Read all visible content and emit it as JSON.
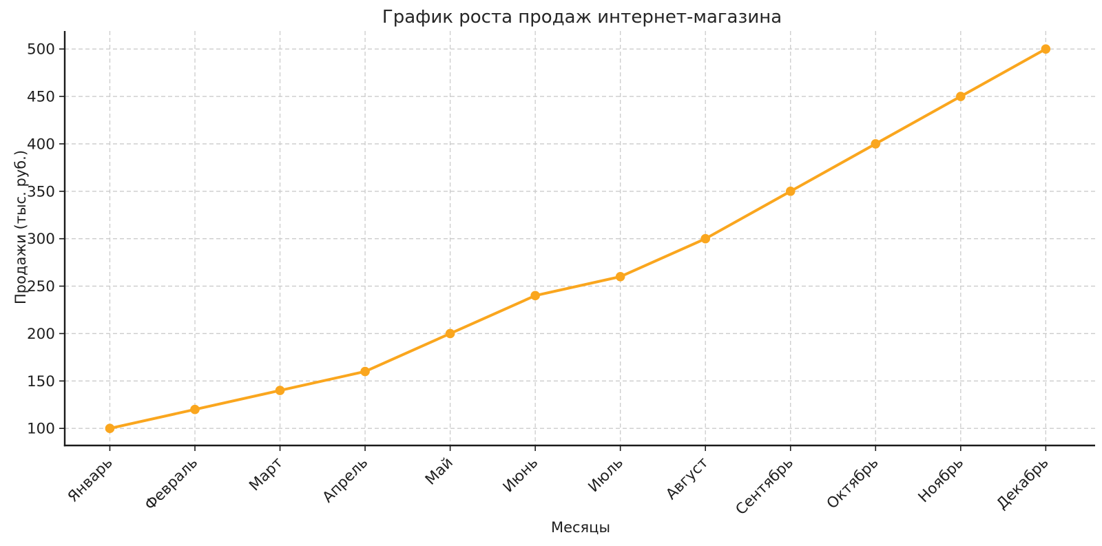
{
  "chart_data": {
    "type": "line",
    "title": "График роста продаж интернет-магазина",
    "xlabel": "Месяцы",
    "ylabel": "Продажи (тыс. руб.)",
    "categories": [
      "Январь",
      "Февраль",
      "Март",
      "Апрель",
      "Май",
      "Июнь",
      "Июль",
      "Август",
      "Сентябрь",
      "Октябрь",
      "Ноябрь",
      "Декабрь"
    ],
    "series": [
      {
        "name": "Продажи",
        "values": [
          100,
          120,
          140,
          160,
          200,
          240,
          260,
          300,
          350,
          400,
          450,
          500
        ]
      }
    ],
    "yticks": [
      100,
      150,
      200,
      250,
      300,
      350,
      400,
      450,
      500
    ],
    "ylim": [
      82,
      519
    ],
    "xlim": [
      -0.53,
      11.58
    ],
    "grid": true,
    "grid_style": "dashed",
    "legend": "none",
    "x_tick_rotation_deg": 45,
    "colors": {
      "line": "#FAA61E",
      "marker": "#FAA61E",
      "grid": "#CBCBCB",
      "spine": "#1A1A1A",
      "text": "#1F1F1F",
      "background": "#FFFFFF"
    }
  }
}
